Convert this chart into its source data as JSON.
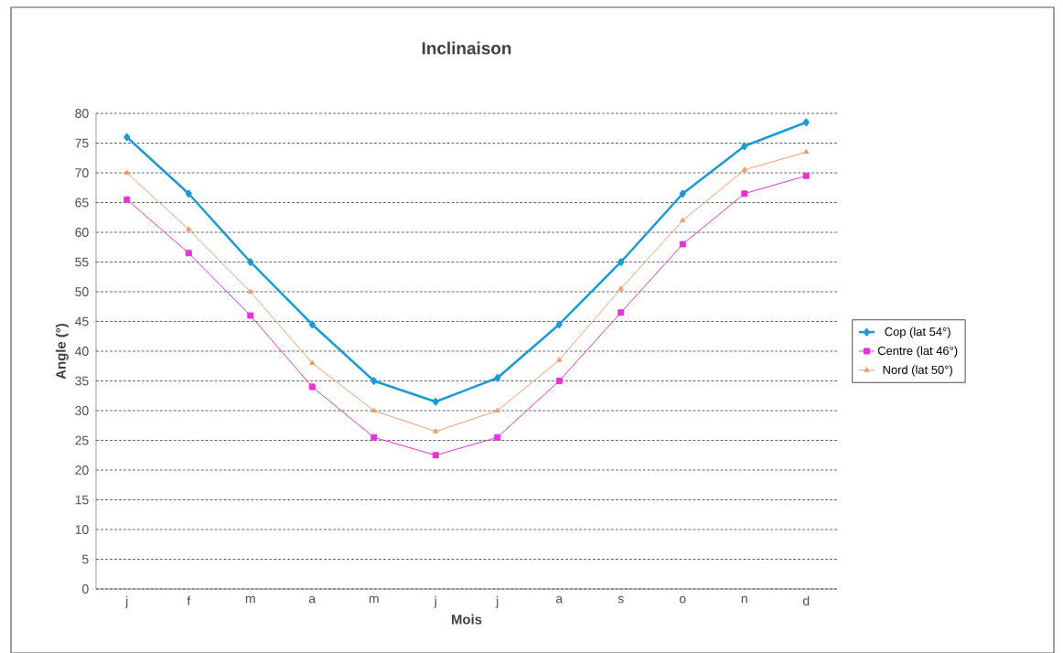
{
  "chart_data": {
    "type": "line",
    "title": "Inclinaison",
    "xlabel": "Mois",
    "ylabel": "Angle (°)",
    "categories": [
      "j",
      "f",
      "m",
      "a",
      "m",
      "j",
      "j",
      "a",
      "s",
      "o",
      "n",
      "d"
    ],
    "series": [
      {
        "name": "Cop (lat 54°)",
        "color": "#1a9ad6",
        "marker": "diamond",
        "values": [
          76,
          66.5,
          55,
          44.5,
          35,
          31.5,
          35.5,
          44.5,
          55,
          66.5,
          74.5,
          78.5
        ]
      },
      {
        "name": "Centre (lat 46°)",
        "color": "#e632d6",
        "marker": "square",
        "values": [
          65.5,
          56.5,
          46,
          34,
          25.5,
          22.5,
          25.5,
          35,
          46.5,
          58,
          66.5,
          69.5
        ]
      },
      {
        "name": "Nord (lat 50°)",
        "color": "#f59a6a",
        "marker": "triangle",
        "values": [
          70,
          60.5,
          50,
          38,
          30,
          26.5,
          30,
          38.5,
          50.5,
          62,
          70.5,
          73.5
        ]
      }
    ],
    "ylim": [
      0,
      80
    ],
    "yticks": [
      0,
      5,
      10,
      15,
      20,
      25,
      30,
      35,
      40,
      45,
      50,
      55,
      60,
      65,
      70,
      75,
      80
    ],
    "grid": "y",
    "legend": "right",
    "line_style": "solid"
  }
}
